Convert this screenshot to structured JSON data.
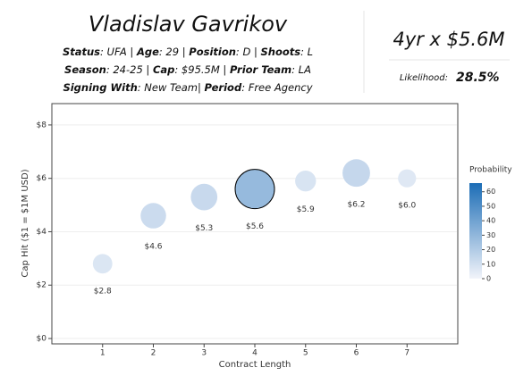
{
  "header": {
    "title": "Vladislav Gavrikov",
    "lines": [
      [
        [
          "Status",
          ": UFA | "
        ],
        [
          "Age",
          ": 29 | "
        ],
        [
          "Position",
          ": D | "
        ],
        [
          "Shoots",
          ": L"
        ]
      ],
      [
        [
          "Season",
          ": 24-25 | "
        ],
        [
          "Cap",
          ": $95.5M | "
        ],
        [
          "Prior Team",
          ": LA"
        ]
      ],
      [
        [
          "Signing With",
          ": New Team| "
        ],
        [
          "Period",
          ": Free Agency"
        ]
      ]
    ],
    "contract": "4yr x $5.6M",
    "likelihood_label": "Likelihood:",
    "likelihood": "28.5%"
  },
  "chart_data": {
    "type": "bubble",
    "x": [
      1,
      2,
      3,
      4,
      5,
      6,
      7
    ],
    "values": [
      2.8,
      4.6,
      5.3,
      5.6,
      5.9,
      6.2,
      6.0
    ],
    "value_labels": [
      "$2.8",
      "$4.6",
      "$5.3",
      "$5.6",
      "$5.9",
      "$6.2",
      "$6.0"
    ],
    "sizes": [
      7,
      12,
      13,
      28.5,
      8,
      14,
      6
    ],
    "x_label": "Contract Length",
    "y_label": "Cap Hit ($1 = $1M USD)",
    "xlim": [
      0,
      8
    ],
    "xticks": [
      1,
      2,
      3,
      4,
      5,
      6,
      7
    ],
    "ylim": [
      -0.2,
      8.8
    ],
    "yticks": [
      {
        "value": 0,
        "label": "$0"
      },
      {
        "value": 2,
        "label": "$2"
      },
      {
        "value": 4,
        "label": "$4"
      },
      {
        "value": 6,
        "label": "$6"
      },
      {
        "value": 8,
        "label": "$8"
      }
    ],
    "grid": true,
    "colorbar_title": "Probability",
    "colorbar_lim": [
      0,
      66
    ],
    "colorbar_ticks": [
      0,
      10,
      20,
      30,
      40,
      50,
      60
    ],
    "colorscale": [
      "#f2f4fa",
      "#1c6db6"
    ],
    "highlight_color": "#000000"
  }
}
